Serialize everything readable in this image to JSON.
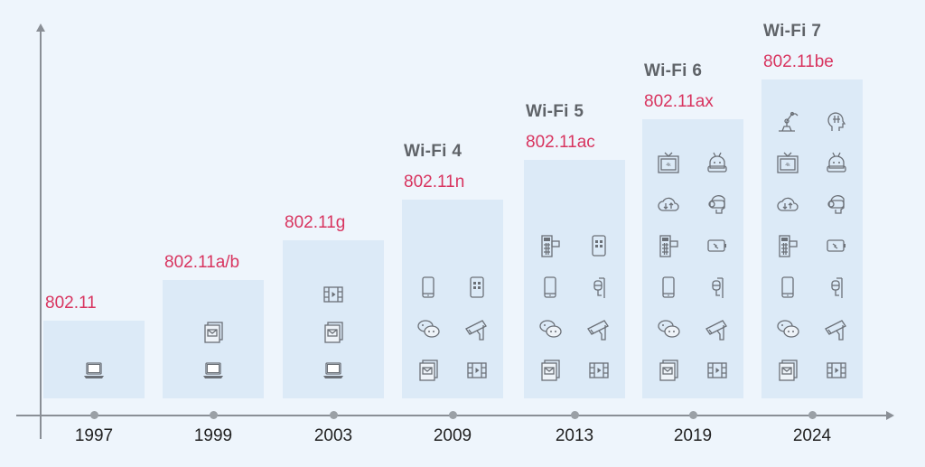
{
  "colors": {
    "standard": "#d8345f",
    "generation": "#5f6368",
    "box": "#dceaf7",
    "background": "#eef5fc"
  },
  "timeline": [
    {
      "year": "1997",
      "standard": "802.11",
      "generation": null,
      "layout": "single",
      "rows": [
        [
          "laptop"
        ]
      ]
    },
    {
      "year": "1999",
      "standard": "802.11a/b",
      "generation": null,
      "layout": "single",
      "rows": [
        [
          "email"
        ],
        [
          "laptop"
        ]
      ]
    },
    {
      "year": "2003",
      "standard": "802.11g",
      "generation": null,
      "layout": "single",
      "rows": [
        [
          "video"
        ],
        [
          "email"
        ],
        [
          "laptop"
        ]
      ]
    },
    {
      "year": "2009",
      "standard": "802.11n",
      "generation": "Wi-Fi 4",
      "layout": "double",
      "rows": [
        [
          "phone",
          "tablet"
        ],
        [
          "chat",
          "camera"
        ],
        [
          "email",
          "video"
        ]
      ]
    },
    {
      "year": "2013",
      "standard": "802.11ac",
      "generation": "Wi-Fi 5",
      "layout": "double",
      "rows": [
        [
          "pos",
          "tablet"
        ],
        [
          "phone",
          "iv-drip"
        ],
        [
          "chat",
          "camera"
        ],
        [
          "email",
          "video"
        ]
      ]
    },
    {
      "year": "2019",
      "standard": "802.11ax",
      "generation": "Wi-Fi 6",
      "layout": "double",
      "rows": [
        [
          "tv-4k",
          "robot"
        ],
        [
          "cloud",
          "vr-headset"
        ],
        [
          "pos",
          "battery"
        ],
        [
          "phone",
          "iv-drip"
        ],
        [
          "chat",
          "camera"
        ],
        [
          "email",
          "video"
        ]
      ]
    },
    {
      "year": "2024",
      "standard": "802.11be",
      "generation": "Wi-Fi 7",
      "layout": "double",
      "rows": [
        [
          "robot-arm",
          "ai-head"
        ],
        [
          "tv-4k",
          "robot"
        ],
        [
          "cloud",
          "vr-headset"
        ],
        [
          "pos",
          "battery"
        ],
        [
          "phone",
          "iv-drip"
        ],
        [
          "chat",
          "camera"
        ],
        [
          "email",
          "video"
        ]
      ]
    }
  ]
}
